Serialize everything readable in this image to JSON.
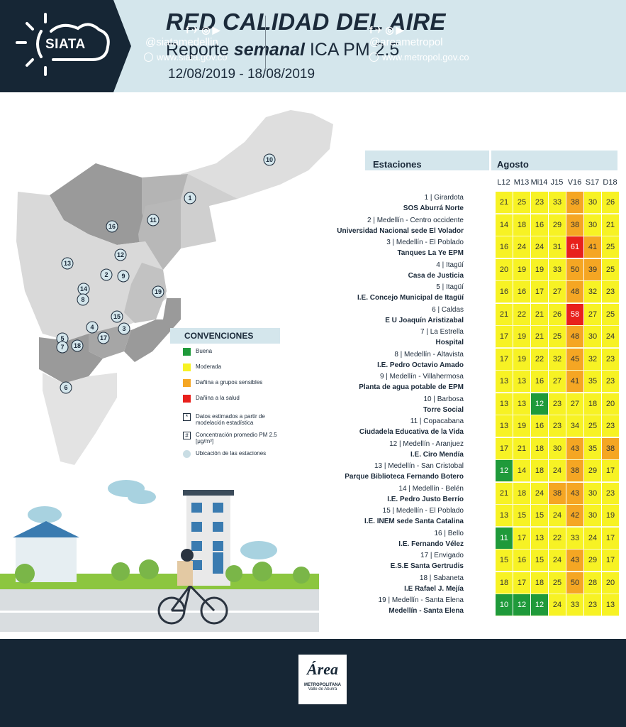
{
  "header": {
    "logo": "SIATA",
    "title": "RED CALIDAD DEL AIRE",
    "subtitle_pre": "Reporte ",
    "subtitle_em": "semanal",
    "subtitle_post": " ICA PM 2.5",
    "date_range": "12/08/2019 - 18/08/2019"
  },
  "table": {
    "stations_header": "Estaciones",
    "month_header": "Agosto",
    "days": [
      "L12",
      "M13",
      "Mi14",
      "J15",
      "V16",
      "S17",
      "D18"
    ],
    "rows": [
      {
        "station": "1 | Girardota",
        "site": "SOS Aburrá Norte",
        "values": [
          "21",
          "25",
          "23",
          "33",
          "38",
          "30",
          "26"
        ],
        "levels": [
          "y",
          "y",
          "y",
          "y",
          "o",
          "y",
          "y"
        ]
      },
      {
        "station": "2 | Medellín - Centro occidente",
        "site": "Universidad Nacional sede El Volador",
        "values": [
          "14",
          "18",
          "16",
          "29",
          "38",
          "30",
          "21"
        ],
        "levels": [
          "y",
          "y",
          "y",
          "y",
          "o",
          "y",
          "y"
        ]
      },
      {
        "station": "3 | Medellín - El Poblado",
        "site": "Tanques La Ye EPM",
        "values": [
          "16",
          "24",
          "24",
          "31",
          "61",
          "41",
          "25"
        ],
        "levels": [
          "y",
          "y",
          "y",
          "y",
          "r",
          "o",
          "y"
        ]
      },
      {
        "station": "4 | Itagüí",
        "site": "Casa de Justicia",
        "values": [
          "20",
          "19",
          "19",
          "33",
          "50",
          "39",
          "25"
        ],
        "levels": [
          "y",
          "y",
          "y",
          "y",
          "o",
          "o",
          "y"
        ]
      },
      {
        "station": "5 | Itagüí",
        "site": "I.E. Concejo Municipal de Itagüí",
        "values": [
          "16",
          "16",
          "17",
          "27",
          "48",
          "32",
          "23"
        ],
        "levels": [
          "y",
          "y",
          "y",
          "y",
          "o",
          "y",
          "y"
        ]
      },
      {
        "station": "6 | Caldas",
        "site": "E U Joaquín Aristizabal",
        "values": [
          "21",
          "22",
          "21",
          "26",
          "58",
          "27",
          "25"
        ],
        "levels": [
          "y",
          "y",
          "y",
          "y",
          "r",
          "y",
          "y"
        ]
      },
      {
        "station": "7 | La Estrella",
        "site": "Hospital",
        "values": [
          "17",
          "19",
          "21",
          "25",
          "48",
          "30",
          "24"
        ],
        "levels": [
          "y",
          "y",
          "y",
          "y",
          "o",
          "y",
          "y"
        ]
      },
      {
        "station": "8 | Medellín - Altavista",
        "site": "I.E. Pedro Octavio Amado",
        "values": [
          "17",
          "19",
          "22",
          "32",
          "45",
          "32",
          "23"
        ],
        "levels": [
          "y",
          "y",
          "y",
          "y",
          "o",
          "y",
          "y"
        ]
      },
      {
        "station": "9 | Medellín - Villahermosa",
        "site": "Planta de agua potable de EPM",
        "values": [
          "13",
          "13",
          "16",
          "27",
          "41",
          "35",
          "23"
        ],
        "levels": [
          "y",
          "y",
          "y",
          "y",
          "o",
          "y",
          "y"
        ]
      },
      {
        "station": "10 | Barbosa",
        "site": "Torre Social",
        "values": [
          "13",
          "13",
          "12",
          "23",
          "27",
          "18",
          "20"
        ],
        "levels": [
          "y",
          "y",
          "g",
          "y",
          "y",
          "y",
          "y"
        ]
      },
      {
        "station": "11 | Copacabana",
        "site": "Ciudadela Educativa de la Vida",
        "values": [
          "13",
          "19",
          "16",
          "23",
          "34",
          "25",
          "23"
        ],
        "levels": [
          "y",
          "y",
          "y",
          "y",
          "y",
          "y",
          "y"
        ]
      },
      {
        "station": "12 | Medellín - Aranjuez",
        "site": "I.E. Ciro Mendía",
        "values": [
          "17",
          "21",
          "18",
          "30",
          "43",
          "35",
          "38"
        ],
        "levels": [
          "y",
          "y",
          "y",
          "y",
          "o",
          "y",
          "o"
        ]
      },
      {
        "station": "13 | Medellín - San Cristobal",
        "site": "Parque Biblioteca Fernando Botero",
        "values": [
          "12",
          "14",
          "18",
          "24",
          "38",
          "29",
          "17"
        ],
        "levels": [
          "g",
          "y",
          "y",
          "y",
          "o",
          "y",
          "y"
        ]
      },
      {
        "station": "14 | Medellín - Belén",
        "site": "I.E. Pedro Justo Berrío",
        "values": [
          "21",
          "18",
          "24",
          "38",
          "43",
          "30",
          "23"
        ],
        "levels": [
          "y",
          "y",
          "y",
          "o",
          "o",
          "y",
          "y"
        ]
      },
      {
        "station": "15 | Medellín - El Poblado",
        "site": "I.E. INEM sede Santa Catalina",
        "values": [
          "13",
          "15",
          "15",
          "24",
          "42",
          "30",
          "19"
        ],
        "levels": [
          "y",
          "y",
          "y",
          "y",
          "o",
          "y",
          "y"
        ]
      },
      {
        "station": "16 | Bello",
        "site": "I.E. Fernando Vélez",
        "values": [
          "11",
          "17",
          "13",
          "22",
          "33",
          "24",
          "17"
        ],
        "levels": [
          "g",
          "y",
          "y",
          "y",
          "y",
          "y",
          "y"
        ]
      },
      {
        "station": "17 | Envigado",
        "site": "E.S.E Santa Gertrudis",
        "values": [
          "15",
          "16",
          "15",
          "24",
          "43",
          "29",
          "17"
        ],
        "levels": [
          "y",
          "y",
          "y",
          "y",
          "o",
          "y",
          "y"
        ]
      },
      {
        "station": "18 | Sabaneta",
        "site": "I.E Rafael J. Mejía",
        "values": [
          "18",
          "17",
          "18",
          "25",
          "50",
          "28",
          "20"
        ],
        "levels": [
          "y",
          "y",
          "y",
          "y",
          "o",
          "y",
          "y"
        ]
      },
      {
        "station": "19 | Medellín - Santa Elena",
        "site": "Medellín - Santa Elena",
        "values": [
          "10",
          "12",
          "12",
          "24",
          "33",
          "23",
          "13"
        ],
        "levels": [
          "g",
          "g",
          "g",
          "y",
          "y",
          "y",
          "y"
        ]
      }
    ]
  },
  "colors": {
    "y": "#f7f224",
    "o": "#f5a623",
    "r": "#e8201c",
    "g": "#1f9a3a",
    "dark": "#162635",
    "light": "#d4e6ec"
  },
  "legend": {
    "title": "CONVENCIONES",
    "items": [
      {
        "label": "Buena",
        "color": "#1f9a3a"
      },
      {
        "label": "Moderada",
        "color": "#f7f224"
      },
      {
        "label": "Dañina a grupos sensibles",
        "color": "#f5a623"
      },
      {
        "label": "Dañina a la salud",
        "color": "#e8201c"
      }
    ],
    "estimated": "Datos estimados a partir de modelación estadística",
    "concentration": "Concentración promedio PM 2.5 [μg/m³]",
    "locations": "Ubicación de las estaciones"
  },
  "map_labels": [
    "10",
    "1",
    "16",
    "11",
    "12",
    "13",
    "2",
    "9",
    "14",
    "8",
    "19",
    "15",
    "4",
    "3",
    "5",
    "17",
    "7",
    "18",
    "6"
  ],
  "footer": {
    "left_handle": "@siatamedellin",
    "left_web": "www.siata.gov.co",
    "right_handle": "@areametropol",
    "right_web": "www.metropol.gov.co",
    "area_logo_main": "Área",
    "area_logo_sub1": "METROPOLITANA",
    "area_logo_sub2": "Valle de Aburrá"
  }
}
